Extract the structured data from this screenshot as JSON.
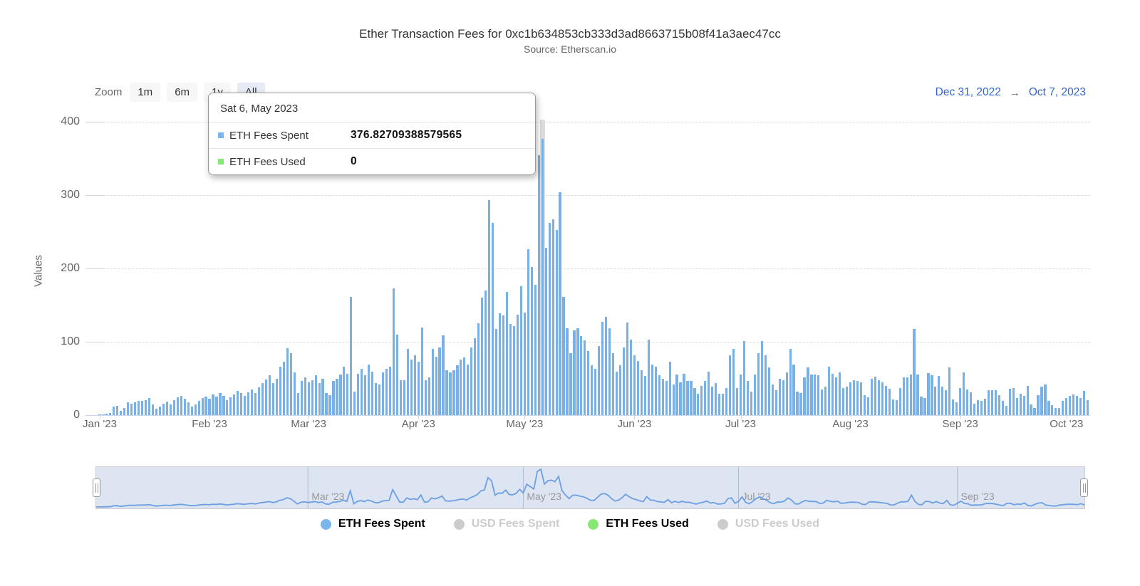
{
  "title": "Ether Transaction Fees for 0xc1b634853cb333d3ad8663715b08f41a3aec47cc",
  "subtitle": "Source: Etherscan.io",
  "toolbar": {
    "zoom_label": "Zoom",
    "buttons": [
      {
        "label": "1m",
        "selected": false
      },
      {
        "label": "6m",
        "selected": false
      },
      {
        "label": "1y",
        "selected": false
      },
      {
        "label": "All",
        "selected": true
      }
    ]
  },
  "range": {
    "from": "Dec 31, 2022",
    "arrow": "→",
    "to": "Oct 7, 2023"
  },
  "tooltip": {
    "header": "Sat 6, May 2023",
    "rows": [
      {
        "label": "ETH Fees Spent",
        "value": "376.82709388579565",
        "color": "#7cb5ec"
      },
      {
        "label": "ETH Fees Used",
        "value": "0",
        "color": "#89e873"
      }
    ]
  },
  "yaxis": {
    "title": "Values",
    "ticks": [
      0,
      100,
      200,
      300,
      400
    ]
  },
  "xaxis": {
    "months": [
      {
        "label": "Jan '23",
        "day_index": 1
      },
      {
        "label": "Feb '23",
        "day_index": 32
      },
      {
        "label": "Mar '23",
        "day_index": 60
      },
      {
        "label": "Apr '23",
        "day_index": 91
      },
      {
        "label": "May '23",
        "day_index": 121
      },
      {
        "label": "Jun '23",
        "day_index": 152
      },
      {
        "label": "Jul '23",
        "day_index": 182
      },
      {
        "label": "Aug '23",
        "day_index": 213
      },
      {
        "label": "Sep '23",
        "day_index": 244
      },
      {
        "label": "Oct '23",
        "day_index": 274
      }
    ]
  },
  "navigator": {
    "labels": [
      {
        "label": "Mar '23",
        "day_index": 60
      },
      {
        "label": "May '23",
        "day_index": 121
      },
      {
        "label": "Jul '23",
        "day_index": 182
      },
      {
        "label": "Sep '23",
        "day_index": 244
      }
    ]
  },
  "legend": [
    {
      "label": "ETH Fees Spent",
      "color": "#7cb5ec",
      "active": true
    },
    {
      "label": "USD Fees Spent",
      "color": "#cccccc",
      "active": false
    },
    {
      "label": "ETH Fees Used",
      "color": "#89e873",
      "active": true
    },
    {
      "label": "USD Fees Used",
      "color": "#cccccc",
      "active": false
    }
  ],
  "chart_data": {
    "type": "bar",
    "title": "Ether Transaction Fees for 0xc1b634853cb333d3ad8663715b08f41a3aec47cc",
    "subtitle": "Source: Etherscan.io",
    "interval": "daily",
    "start_date": "2022-12-31",
    "end_date": "2023-10-07",
    "xlabel": "",
    "ylabel": "Values",
    "ylim": [
      0,
      400
    ],
    "grid": true,
    "highlight_index": 126,
    "highlighted_point": {
      "date": "Sat 6, May 2023",
      "ETH Fees Spent": 376.82709388579565,
      "ETH Fees Used": 0
    },
    "series": [
      {
        "name": "ETH Fees Spent",
        "color": "#7cb5ec",
        "values": [
          0.3,
          0.5,
          1,
          2,
          3,
          12,
          13,
          6,
          10,
          17,
          16,
          17,
          19,
          19,
          20,
          23,
          15,
          9,
          12,
          16,
          18,
          15,
          20,
          24,
          26,
          22,
          17,
          12,
          15,
          19,
          23,
          25,
          22,
          28,
          25,
          30,
          26,
          20,
          24,
          28,
          33,
          30,
          26,
          31,
          35,
          30,
          38,
          44,
          49,
          54,
          44,
          50,
          66,
          73,
          91,
          84,
          58,
          30,
          47,
          51,
          45,
          48,
          54,
          44,
          50,
          30,
          27,
          47,
          50,
          55,
          66,
          56,
          161,
          32,
          56,
          63,
          54,
          69,
          59,
          44,
          42,
          58,
          63,
          66,
          173,
          110,
          48,
          48,
          90,
          76,
          82,
          73,
          119,
          48,
          51,
          90,
          80,
          92,
          109,
          61,
          58,
          61,
          68,
          76,
          79,
          69,
          92,
          105,
          125,
          160,
          170,
          293,
          262,
          117,
          139,
          136,
          168,
          124,
          121,
          137,
          176,
          140,
          226,
          202,
          178,
          354,
          376.82709388579565,
          228,
          262,
          267,
          252,
          304,
          161,
          118,
          84,
          116,
          118,
          108,
          102,
          87,
          68,
          63,
          94,
          127,
          134,
          118,
          84,
          59,
          68,
          92,
          126,
          103,
          82,
          74,
          61,
          53,
          103,
          69,
          66,
          54,
          50,
          47,
          73,
          42,
          55,
          45,
          56,
          47,
          47,
          37,
          29,
          40,
          47,
          59,
          39,
          44,
          29,
          29,
          37,
          82,
          90,
          37,
          55,
          101,
          47,
          32,
          55,
          84,
          101,
          82,
          65,
          42,
          34,
          50,
          48,
          58,
          90,
          69,
          32,
          30,
          51,
          65,
          55,
          55,
          54,
          35,
          39,
          66,
          56,
          51,
          58,
          37,
          39,
          45,
          48,
          47,
          45,
          27,
          24,
          50,
          52,
          48,
          45,
          40,
          36,
          21,
          20,
          37,
          51,
          51,
          55,
          117,
          55,
          25,
          23,
          57,
          54,
          39,
          53,
          39,
          34,
          65,
          21,
          17,
          37,
          58,
          35,
          31,
          16,
          20,
          19,
          22,
          34,
          34,
          34,
          27,
          19,
          13,
          36,
          37,
          23,
          29,
          26,
          40,
          15,
          10,
          27,
          39,
          42,
          19,
          14,
          10,
          10,
          19,
          23,
          26,
          28,
          26,
          23,
          33,
          20
        ]
      },
      {
        "name": "ETH Fees Used",
        "color": "#89e873",
        "constant_value": 0
      }
    ]
  }
}
